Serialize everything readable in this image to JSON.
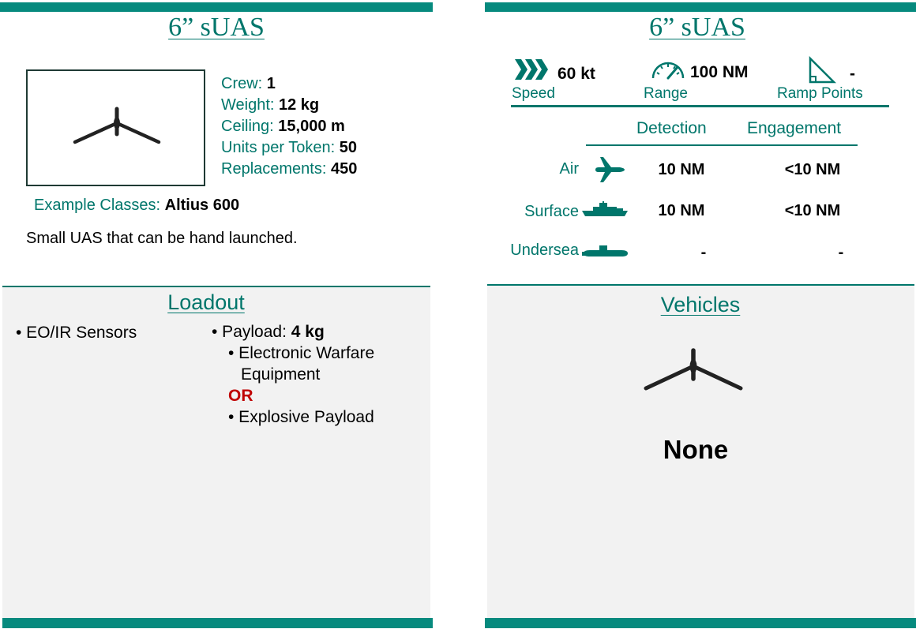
{
  "left_card": {
    "title": "6” sUAS",
    "stats": {
      "crew_label": "Crew: ",
      "crew_value": "1",
      "weight_label": "Weight: ",
      "weight_value": "12 kg",
      "ceiling_label": "Ceiling: ",
      "ceiling_value": "15,000 m",
      "units_label": "Units per Token: ",
      "units_value": "50",
      "replacements_label": "Replacements: ",
      "replacements_value": "450"
    },
    "example_label": "Example Classes: ",
    "example_value": "Altius 600",
    "description": "Small UAS that can be hand launched.",
    "image_icon": "drone-silhouette-icon"
  },
  "loadout": {
    "title": "Loadout",
    "sensors": "• EO/IR Sensors",
    "payload_label": "• Payload: ",
    "payload_value": "4 kg",
    "option1_line1": "• Electronic Warfare",
    "option1_line2": "Equipment",
    "or_label": "OR",
    "option2": "• Explosive Payload"
  },
  "right_card": {
    "title": "6” sUAS",
    "speed_value": "60 kt",
    "speed_label": "Speed",
    "range_value": "100 NM",
    "range_label": "Range",
    "ramp_value": "-",
    "ramp_label": "Ramp Points",
    "detection_header": "Detection",
    "engagement_header": "Engagement",
    "rows": [
      {
        "label": "Air",
        "icon": "airplane-icon",
        "detection": "10 NM",
        "engagement": "<10 NM"
      },
      {
        "label": "Surface",
        "icon": "ship-icon",
        "detection": "10 NM",
        "engagement": "<10 NM"
      },
      {
        "label": "Undersea",
        "icon": "submarine-icon",
        "detection": "-",
        "engagement": "-"
      }
    ]
  },
  "vehicles": {
    "title": "Vehicles",
    "value": "None",
    "icon": "drone-silhouette-icon"
  },
  "colors": {
    "accent": "#00766b",
    "bar": "#068a7e",
    "or_red": "#c00000",
    "panel_bg": "#f2f2f2"
  }
}
